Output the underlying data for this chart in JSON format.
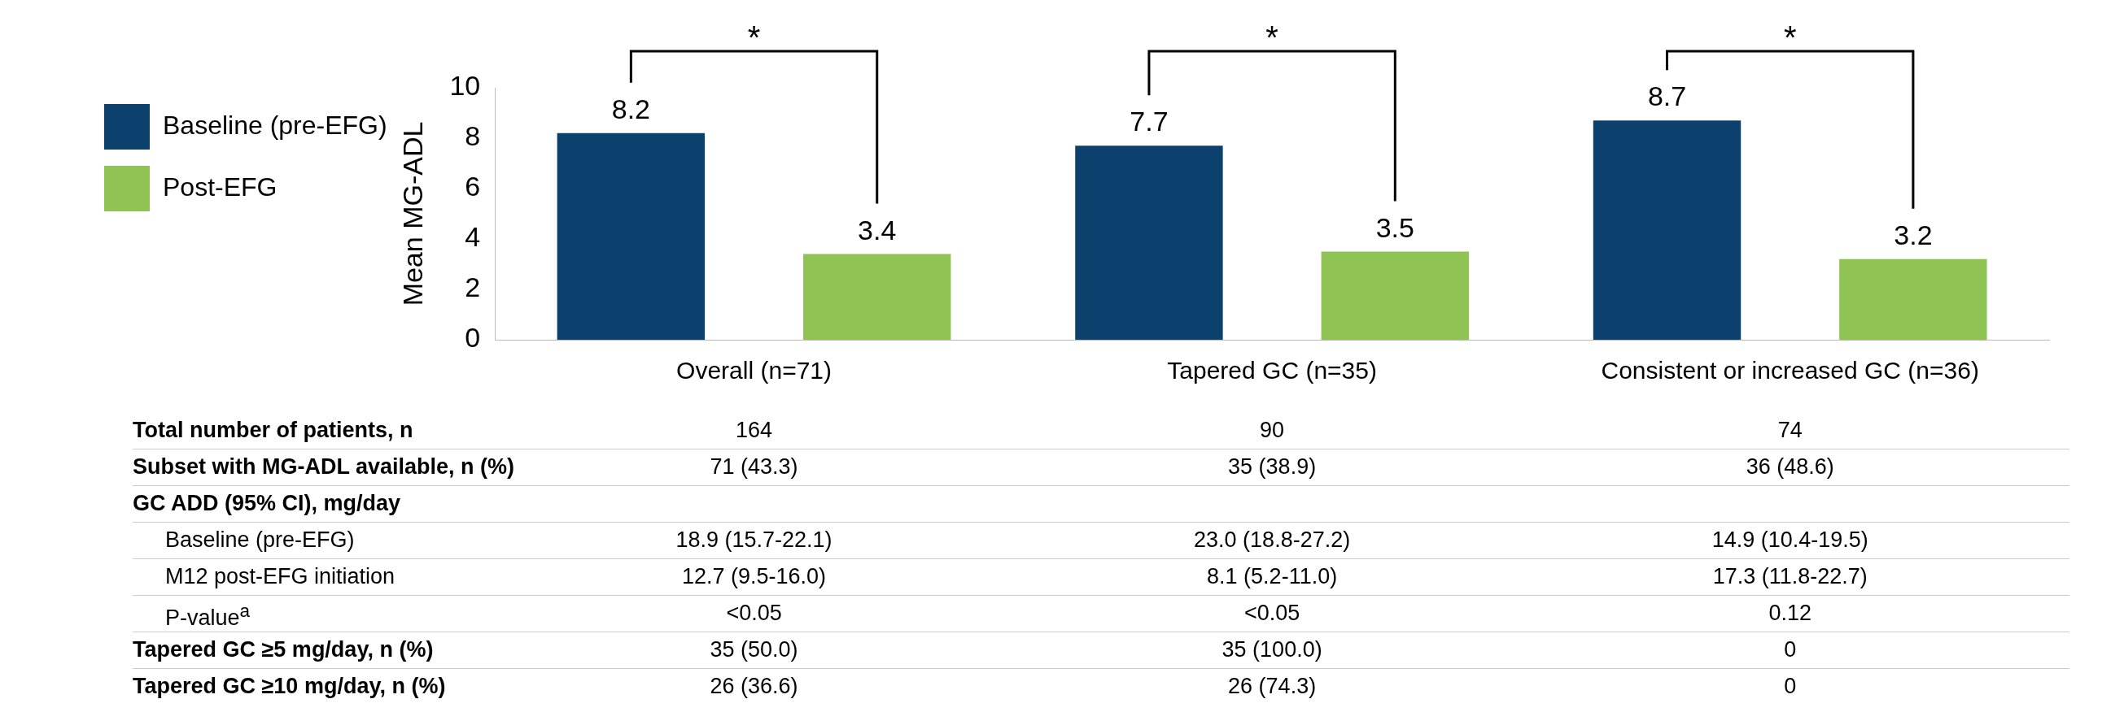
{
  "chart_data": {
    "type": "bar",
    "ylabel": "Mean MG-ADL",
    "categories": [
      "Overall (n=71)",
      "Tapered GC (n=35)",
      "Consistent or increased GC (n=36)"
    ],
    "series": [
      {
        "name": "Baseline (pre-EFG)",
        "color": "#0c416e",
        "values": [
          8.2,
          7.7,
          8.7
        ]
      },
      {
        "name": "Post-EFG",
        "color": "#8fc454",
        "values": [
          3.4,
          3.5,
          3.2
        ]
      }
    ],
    "ylim": [
      0,
      10
    ],
    "yticks": [
      0,
      2,
      4,
      6,
      8,
      10
    ],
    "grid": false,
    "legend": "top left",
    "data_labels": true,
    "annotations": [
      "*",
      "*",
      "*",
      "Total number of patients, n",
      "164",
      "90",
      "74",
      "Subset with MG-ADL available, n (%)",
      "71 (43.3)",
      "35 (38.9)",
      "36 (48.6)",
      "GC ADD (95% CI), mg/day",
      "Baseline (pre-EFG)",
      "18.9 (15.7-22.1)",
      "23.0 (18.8-27.2)",
      "14.9 (10.4-19.5)",
      "M12 post-EFG initiation",
      "12.7 (9.5-16.0)",
      "8.1 (5.2-11.0)",
      "17.3 (11.8-22.7)",
      "P-value$^{a}$",
      "<0.05",
      "<0.05",
      "0.12",
      "Tapered GC ≥5 mg/day, n (%)",
      "35 (50.0)",
      "35 (100.0)",
      "0",
      "Tapered GC ≥10 mg/day, n (%)",
      "26 (36.6)",
      "26 (74.3)",
      "0"
    ]
  }
}
